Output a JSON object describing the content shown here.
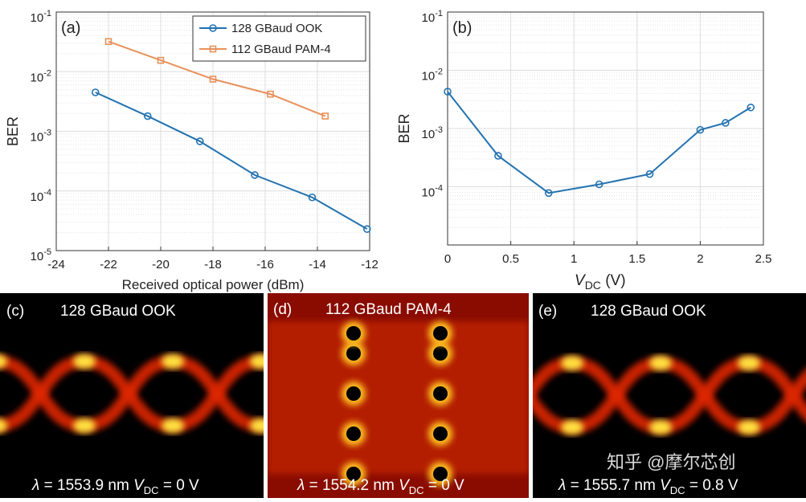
{
  "chart_data": [
    {
      "type": "line",
      "annotation": "(a)",
      "xlabel": "Received optical power (dBm)",
      "ylabel": "BER",
      "log_y": true,
      "grid": true,
      "minor_grid": true,
      "legend": "top-right",
      "xlim": [
        -24,
        -12
      ],
      "xticks": [
        -24,
        -22,
        -20,
        -18,
        -16,
        -14,
        -12
      ],
      "ylim": [
        1e-05,
        0.1
      ],
      "yticks": [
        {
          "value": 1e-05,
          "label": "10^-5"
        },
        {
          "value": 0.0001,
          "label": "10^-4"
        },
        {
          "value": 0.001,
          "label": "10^-3"
        },
        {
          "value": 0.01,
          "label": "10^-2"
        },
        {
          "value": 0.1,
          "label": "10^-1"
        }
      ],
      "series": [
        {
          "name": "128 GBaud OOK",
          "color": "#2272b0",
          "marker": "circle",
          "x": [
            -22.5,
            -20.5,
            -18.5,
            -16.4,
            -14.2,
            -12.1
          ],
          "values": [
            0.0045,
            0.0018,
            0.00068,
            0.000185,
            7.8e-05,
            2.3e-05
          ]
        },
        {
          "name": "112 GBaud PAM-4",
          "color": "#e8905a",
          "marker": "square",
          "x": [
            -22,
            -20,
            -18,
            -15.8,
            -13.7
          ],
          "values": [
            0.032,
            0.0155,
            0.0075,
            0.0042,
            0.0018
          ]
        }
      ]
    },
    {
      "type": "line",
      "annotation": "(b)",
      "xlabel": [
        "V",
        "DC",
        " (V)"
      ],
      "ylabel": "BER",
      "log_y": true,
      "grid": true,
      "minor_grid": true,
      "xlim": [
        0,
        2.5
      ],
      "xticks": [
        0,
        0.5,
        1,
        1.5,
        2,
        2.5
      ],
      "ylim": [
        1e-05,
        0.1
      ],
      "yticks": [
        {
          "value": 0.0001,
          "label": "10^-4"
        },
        {
          "value": 0.001,
          "label": "10^-3"
        },
        {
          "value": 0.01,
          "label": "10^-2"
        },
        {
          "value": 0.1,
          "label": "10^-1"
        }
      ],
      "series": [
        {
          "name": "BER",
          "color": "#2272b0",
          "marker": "circle",
          "x": [
            0,
            0.4,
            0.8,
            1.2,
            1.6,
            2.0,
            2.2,
            2.4
          ],
          "values": [
            0.0043,
            0.00034,
            7.8e-05,
            0.00011,
            0.000165,
            0.00095,
            0.00125,
            0.0023
          ]
        }
      ]
    }
  ],
  "panels": [
    {
      "label": "(c)",
      "title": "128 GBaud OOK",
      "caption": [
        "λ",
        " = 1553.9 nm ",
        "V",
        "DC",
        " = 0 V"
      ]
    },
    {
      "label": "(d)",
      "title": "112 GBaud PAM-4",
      "caption": [
        "λ",
        " = 1554.2 nm ",
        "V",
        "DC",
        " = 0 V"
      ]
    },
    {
      "label": "(e)",
      "title": "128 GBaud OOK",
      "caption": [
        "λ",
        " = 1555.7 nm ",
        "V",
        "DC",
        " = 0.8 V"
      ]
    }
  ],
  "watermark": "知乎 @摩尔芯创"
}
